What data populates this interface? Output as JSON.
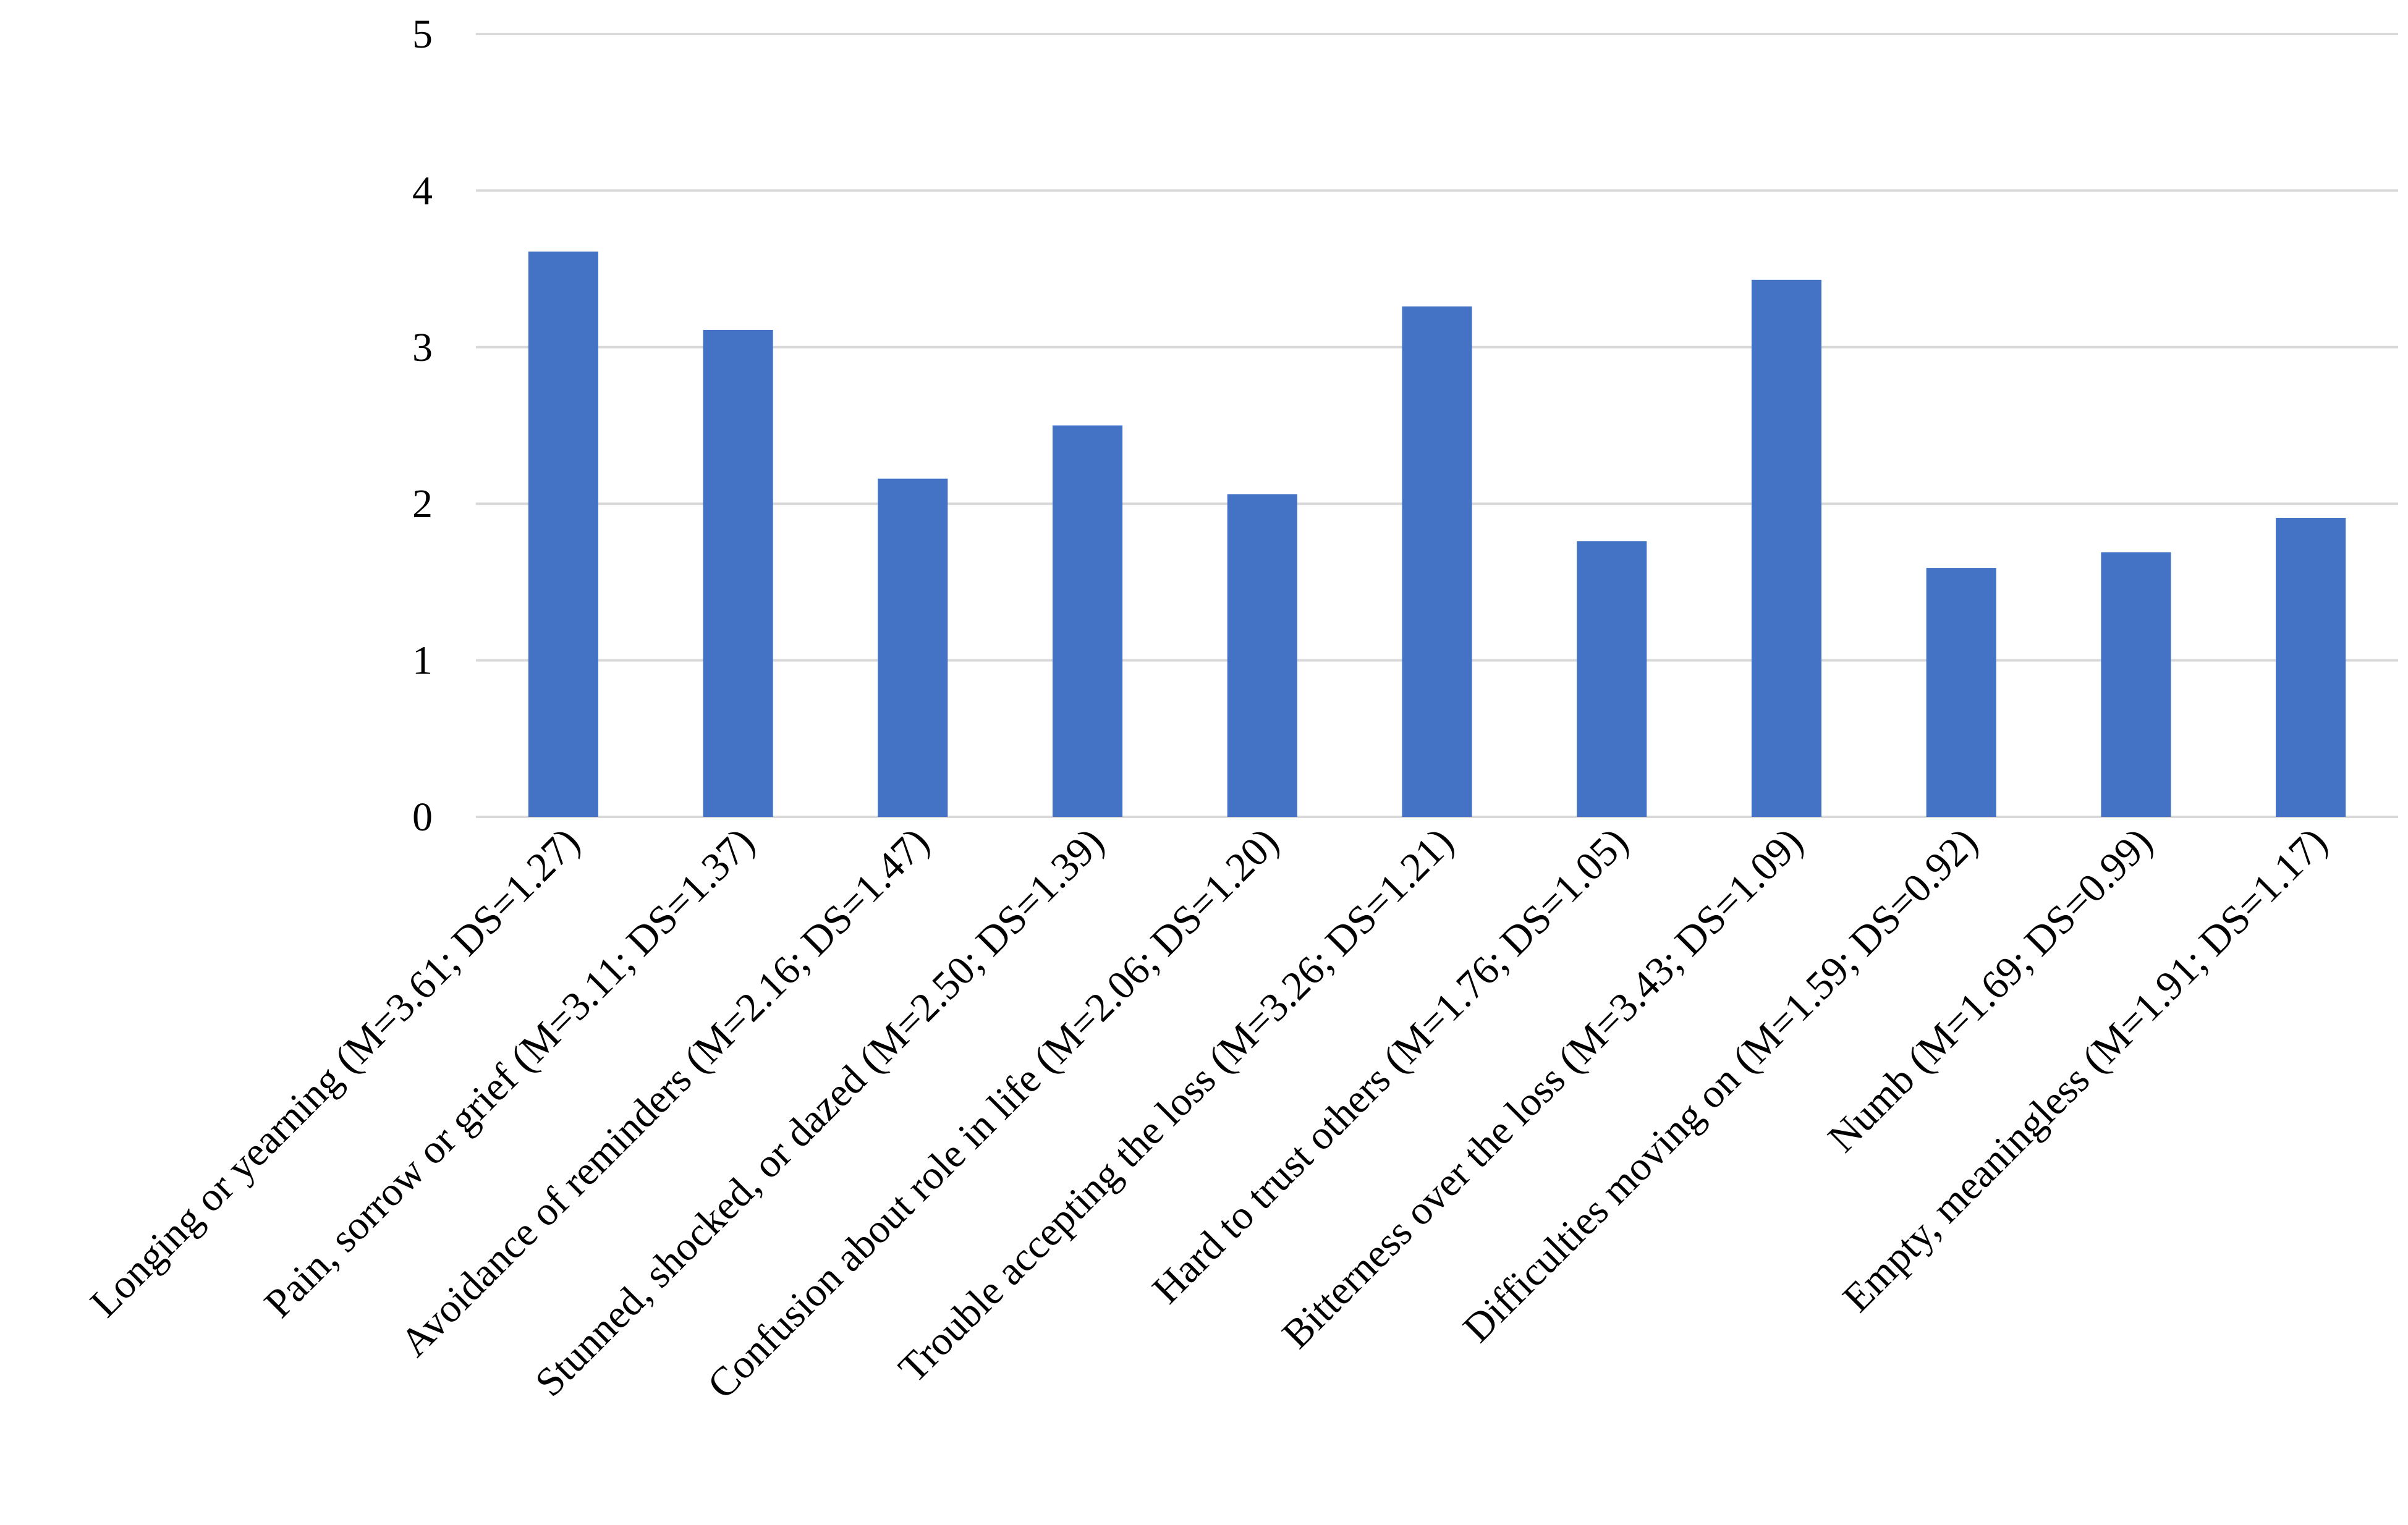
{
  "chart_data": {
    "type": "bar",
    "title": "",
    "xlabel": "",
    "ylabel": "",
    "ylim": [
      0,
      5
    ],
    "yticks": [
      0,
      1,
      2,
      3,
      4,
      5
    ],
    "grid": true,
    "legend": "none",
    "bar_color": "#4472c4",
    "grid_color": "#d9d9d9",
    "categories": [
      "Longing or yearning (M=3.61; DS=1.27)",
      "Pain, sorrow or grief (M=3.11; DS=1.37)",
      "Avoidance of reminders (M=2.16; DS=1.47)",
      "Stunned, shocked, or dazed (M=2.50; DS=1.39)",
      "Confusion about role in life (M=2.06; DS=1.20)",
      "Trouble accepting the loss (M=3.26; DS=1.21)",
      "Hard to trust others (M=1.76; DS=1.05)",
      "Bitterness over the loss (M=3.43; DS=1.09)",
      "Difficulties moving on (M=1.59; DS=0.92)",
      "Numb (M=1.69; DS=0.99)",
      "Empty, meaningless (M=1.91; DS=1.17)"
    ],
    "values": [
      3.61,
      3.11,
      2.16,
      2.5,
      2.06,
      3.26,
      1.76,
      3.43,
      1.59,
      1.69,
      1.91
    ]
  }
}
